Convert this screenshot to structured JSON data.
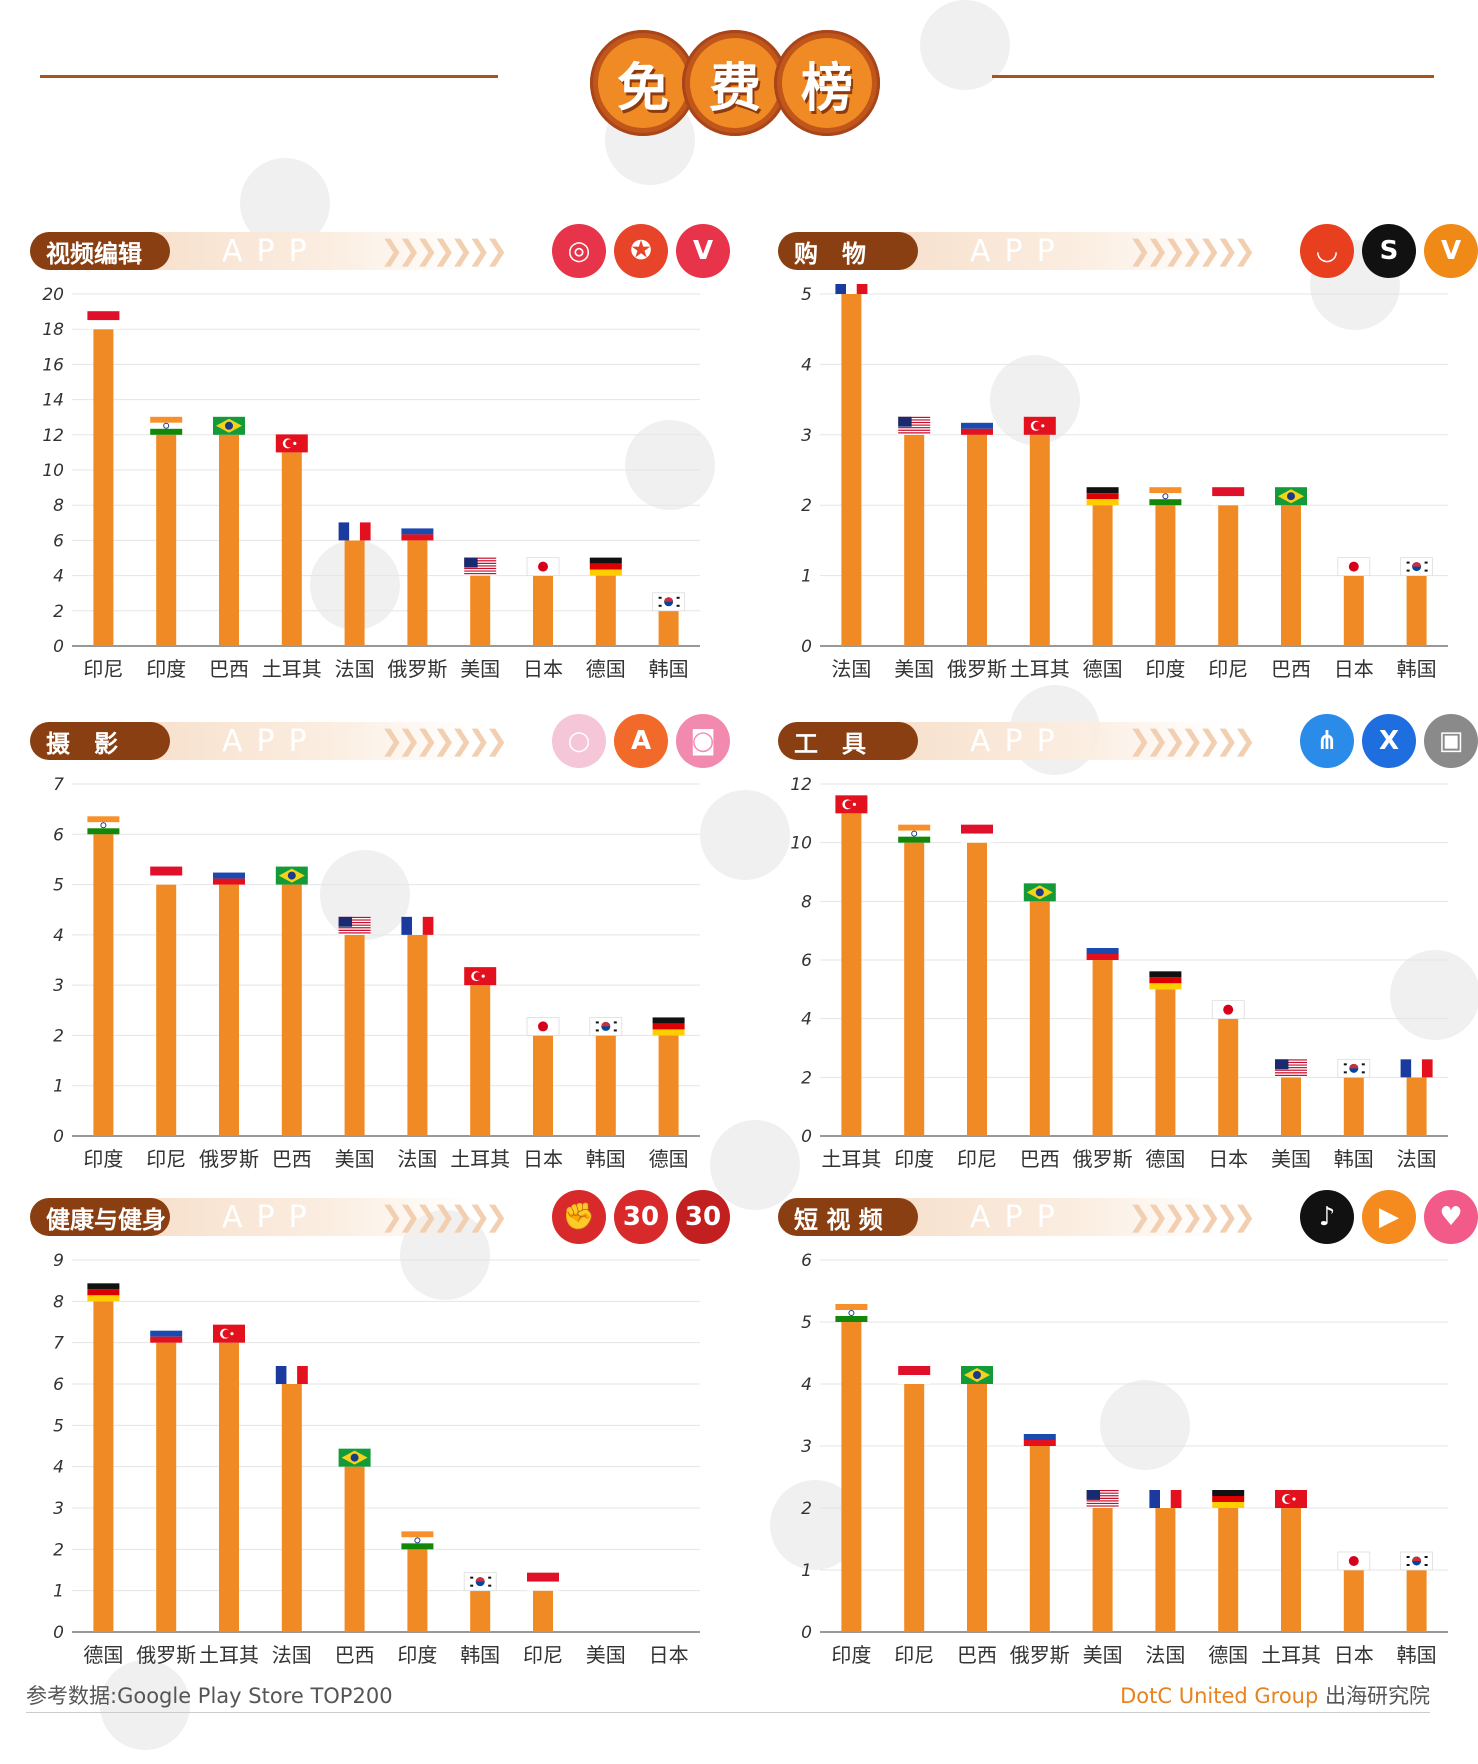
{
  "header": {
    "title_chars": [
      "免",
      "费",
      "榜"
    ]
  },
  "colors": {
    "bar": "#f08a24",
    "pill": "#8a3f12",
    "grid": "#e5e5e5",
    "axis": "#777777"
  },
  "footer": {
    "source": "参考数据:Google Play Store TOP200",
    "brand": "DotC United Group",
    "org": " 出海研究院"
  },
  "panels": [
    {
      "label": "视频编辑",
      "app_text": "APP",
      "icons": [
        {
          "name": "camera-app-icon",
          "glyph": "◎",
          "color": "#e8344a"
        },
        {
          "name": "video-star-app-icon",
          "glyph": "✪",
          "color": "#e8442a"
        },
        {
          "name": "v-app-icon",
          "glyph": "V",
          "color": "#e8344a"
        }
      ],
      "chart_data": {
        "type": "bar",
        "categories": [
          "印尼",
          "印度",
          "巴西",
          "土耳其",
          "法国",
          "俄罗斯",
          "美国",
          "日本",
          "德国",
          "韩国"
        ],
        "values": [
          18,
          12,
          12,
          11,
          6,
          6,
          4,
          4,
          4,
          2
        ],
        "yticks": [
          0,
          2,
          4,
          6,
          8,
          10,
          12,
          14,
          16,
          18,
          20
        ],
        "ylim": [
          0,
          20
        ],
        "flags": [
          "id",
          "in",
          "br",
          "tr",
          "fr",
          "ru",
          "us",
          "jp",
          "de",
          "kr"
        ],
        "title": "",
        "xlabel": "",
        "ylabel": ""
      }
    },
    {
      "label": "购　物",
      "app_text": "APP",
      "icons": [
        {
          "name": "aliexpress-app-icon",
          "glyph": "◡",
          "color": "#e8401e"
        },
        {
          "name": "s-app-icon",
          "glyph": "S",
          "color": "#111111"
        },
        {
          "name": "v-shop-app-icon",
          "glyph": "V",
          "color": "#f08a16"
        }
      ],
      "chart_data": {
        "type": "bar",
        "categories": [
          "法国",
          "美国",
          "俄罗斯",
          "土耳其",
          "德国",
          "印度",
          "印尼",
          "巴西",
          "日本",
          "韩国"
        ],
        "values": [
          5,
          3,
          3,
          3,
          2,
          2,
          2,
          2,
          1,
          1
        ],
        "yticks": [
          0,
          1,
          2,
          3,
          4,
          5
        ],
        "ylim": [
          0,
          5
        ],
        "flags": [
          "fr",
          "us",
          "ru",
          "tr",
          "de",
          "in",
          "id",
          "br",
          "jp",
          "kr"
        ],
        "title": "",
        "xlabel": "",
        "ylabel": ""
      }
    },
    {
      "label": "摄　影",
      "app_text": "APP",
      "icons": [
        {
          "name": "pastel-camera-app-icon",
          "glyph": "○",
          "color": "#f4c6d8"
        },
        {
          "name": "a-photo-app-icon",
          "glyph": "A",
          "color": "#f26a2a"
        },
        {
          "name": "pink-camera-app-icon",
          "glyph": "◙",
          "color": "#f28ab0"
        }
      ],
      "chart_data": {
        "type": "bar",
        "categories": [
          "印度",
          "印尼",
          "俄罗斯",
          "巴西",
          "美国",
          "法国",
          "土耳其",
          "日本",
          "韩国",
          "德国"
        ],
        "values": [
          6,
          5,
          5,
          5,
          4,
          4,
          3,
          2,
          2,
          2
        ],
        "yticks": [
          0,
          1,
          2,
          3,
          4,
          5,
          6,
          7
        ],
        "ylim": [
          0,
          7
        ],
        "flags": [
          "in",
          "id",
          "ru",
          "br",
          "us",
          "fr",
          "tr",
          "jp",
          "kr",
          "de"
        ],
        "title": "",
        "xlabel": "",
        "ylabel": ""
      }
    },
    {
      "label": "工　具",
      "app_text": "APP",
      "icons": [
        {
          "name": "share-app-icon",
          "glyph": "⋔",
          "color": "#2a8be8"
        },
        {
          "name": "x-app-icon",
          "glyph": "X",
          "color": "#1e6ee0"
        },
        {
          "name": "vault-app-icon",
          "glyph": "▣",
          "color": "#8a8a8a"
        }
      ],
      "chart_data": {
        "type": "bar",
        "categories": [
          "土耳其",
          "印度",
          "印尼",
          "巴西",
          "俄罗斯",
          "德国",
          "日本",
          "美国",
          "韩国",
          "法国"
        ],
        "values": [
          11,
          10,
          10,
          8,
          6,
          5,
          4,
          2,
          2,
          2
        ],
        "yticks": [
          0,
          2,
          4,
          6,
          8,
          10,
          12
        ],
        "ylim": [
          0,
          12
        ],
        "flags": [
          "tr",
          "in",
          "id",
          "br",
          "ru",
          "de",
          "jp",
          "us",
          "kr",
          "fr"
        ],
        "title": "",
        "xlabel": "",
        "ylabel": ""
      }
    },
    {
      "label": "健康与健身",
      "app_text": "APP",
      "icons": [
        {
          "name": "boxing-app-icon",
          "glyph": "✊",
          "color": "#d82a2a"
        },
        {
          "name": "fitness-30-app-icon",
          "glyph": "30",
          "color": "#d82a2a"
        },
        {
          "name": "abs-30-app-icon",
          "glyph": "30",
          "color": "#c22020"
        }
      ],
      "chart_data": {
        "type": "bar",
        "categories": [
          "德国",
          "俄罗斯",
          "土耳其",
          "法国",
          "巴西",
          "印度",
          "韩国",
          "印尼",
          "美国",
          "日本"
        ],
        "values": [
          8,
          7,
          7,
          6,
          4,
          2,
          1,
          1,
          0,
          0
        ],
        "yticks": [
          0,
          1,
          2,
          3,
          4,
          5,
          6,
          7,
          8,
          9
        ],
        "ylim": [
          0,
          9
        ],
        "flags": [
          "de",
          "ru",
          "tr",
          "fr",
          "br",
          "in",
          "kr",
          "id",
          "",
          ""
        ],
        "title": "",
        "xlabel": "",
        "ylabel": ""
      }
    },
    {
      "label": "短 视 频",
      "app_text": "APP",
      "icons": [
        {
          "name": "tiktok-app-icon",
          "glyph": "♪",
          "color": "#111111"
        },
        {
          "name": "kwai-app-icon",
          "glyph": "▶",
          "color": "#f58a1e"
        },
        {
          "name": "likee-app-icon",
          "glyph": "♥",
          "color": "#f25a8a"
        }
      ],
      "chart_data": {
        "type": "bar",
        "categories": [
          "印度",
          "印尼",
          "巴西",
          "俄罗斯",
          "美国",
          "法国",
          "德国",
          "土耳其",
          "日本",
          "韩国"
        ],
        "values": [
          5,
          4,
          4,
          3,
          2,
          2,
          2,
          2,
          1,
          1
        ],
        "yticks": [
          0,
          1,
          2,
          3,
          4,
          5,
          6
        ],
        "ylim": [
          0,
          6
        ],
        "flags": [
          "in",
          "id",
          "br",
          "ru",
          "us",
          "fr",
          "de",
          "tr",
          "jp",
          "kr"
        ],
        "title": "",
        "xlabel": "",
        "ylabel": ""
      }
    }
  ]
}
